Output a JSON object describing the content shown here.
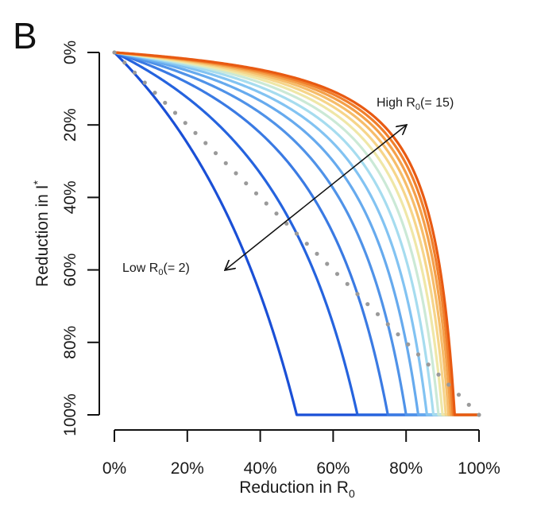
{
  "panel_label": "B",
  "chart_data": {
    "type": "line",
    "title": "",
    "xlabel": "Reduction in R0",
    "xlabel_main": "Reduction in R",
    "xlabel_sub": "0",
    "ylabel": "Reduction in I*",
    "ylabel_main": "Reduction in I",
    "ylabel_sup": "*",
    "xlim": [
      0,
      1
    ],
    "ylim": [
      0,
      1
    ],
    "y_inverted": true,
    "grid": false,
    "x_ticks": [
      0,
      0.2,
      0.4,
      0.6,
      0.8,
      1.0
    ],
    "x_tick_labels": [
      "0%",
      "20%",
      "40%",
      "60%",
      "80%",
      "100%"
    ],
    "y_ticks": [
      0,
      0.2,
      0.4,
      0.6,
      0.8,
      1.0
    ],
    "y_tick_labels": [
      "0%",
      "20%",
      "40%",
      "60%",
      "80%",
      "100%"
    ],
    "model": "reduction_in_Istar = 1 - (1 - 1/(R0*(1-x))) / (1 - 1/R0), clipped to 1 when R0*(1-x) <= 1",
    "series": [
      {
        "name": "R0 = 2",
        "R0": 2,
        "color": "#1a4fd6",
        "threshold_x": 0.5
      },
      {
        "name": "R0 = 3",
        "R0": 3,
        "color": "#2563de",
        "threshold_x": 0.667
      },
      {
        "name": "R0 = 4",
        "R0": 4,
        "color": "#3a7ae3",
        "threshold_x": 0.75
      },
      {
        "name": "R0 = 5",
        "R0": 5,
        "color": "#4f92e8",
        "threshold_x": 0.8
      },
      {
        "name": "R0 = 6",
        "R0": 6,
        "color": "#66aaee",
        "threshold_x": 0.833
      },
      {
        "name": "R0 = 7",
        "R0": 7,
        "color": "#82c3f2",
        "threshold_x": 0.857
      },
      {
        "name": "R0 = 8",
        "R0": 8,
        "color": "#a6dcef",
        "threshold_x": 0.875
      },
      {
        "name": "R0 = 9",
        "R0": 9,
        "color": "#cbe9d6",
        "threshold_x": 0.889
      },
      {
        "name": "R0 = 10",
        "R0": 10,
        "color": "#efe7a8",
        "threshold_x": 0.9
      },
      {
        "name": "R0 = 11",
        "R0": 11,
        "color": "#f6d58a",
        "threshold_x": 0.909
      },
      {
        "name": "R0 = 12",
        "R0": 12,
        "color": "#f6bd6a",
        "threshold_x": 0.917
      },
      {
        "name": "R0 = 13",
        "R0": 13,
        "color": "#f4a04a",
        "threshold_x": 0.923
      },
      {
        "name": "R0 = 14",
        "R0": 14,
        "color": "#f07f2c",
        "threshold_x": 0.929
      },
      {
        "name": "R0 = 15",
        "R0": 15,
        "color": "#e85a12",
        "threshold_x": 0.933
      }
    ],
    "reference_line": {
      "name": "identity",
      "x": [
        0,
        1
      ],
      "y": [
        0,
        1
      ],
      "style": "dotted",
      "color": "#9a9a9a"
    },
    "annotations": {
      "high": {
        "main": "High R",
        "sub": "0",
        "rest": "(= 15)"
      },
      "low": {
        "main": "Low R",
        "sub": "0",
        "rest": "(= 2)"
      },
      "arrow": {
        "direction": "double-headed",
        "from_low_to_high_R0": true,
        "color": "#111111"
      }
    }
  }
}
